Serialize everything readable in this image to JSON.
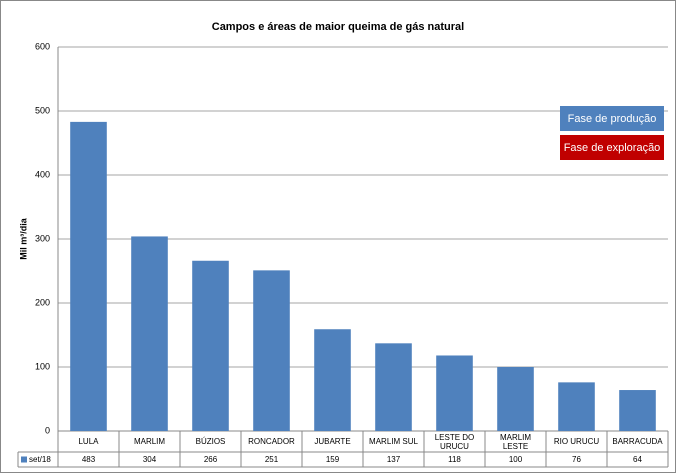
{
  "chart_data": {
    "type": "bar",
    "title": "Campos e áreas de maior queima de gás natural",
    "y_label": "Mil m³/dia",
    "categories": [
      "LULA",
      "MARLIM",
      "BÚZIOS",
      "RONCADOR",
      "JUBARTE",
      "MARLIM SUL",
      "LESTE DO URUCU",
      "MARLIM LESTE",
      "RIO URUCU",
      "BARRACUDA"
    ],
    "series": [
      {
        "name": "set/18",
        "color": "#4f81bd",
        "values": [
          483,
          304,
          266,
          251,
          159,
          137,
          118,
          100,
          76,
          64
        ]
      }
    ],
    "ylim": [
      0,
      600
    ],
    "yticks": [
      0,
      100,
      200,
      300,
      400,
      500,
      600
    ],
    "grid": true,
    "annotations": [
      {
        "text": "Fase de produção",
        "color": "#4f81bd"
      },
      {
        "text": "Fase de exploração",
        "color": "#c00000"
      }
    ]
  }
}
